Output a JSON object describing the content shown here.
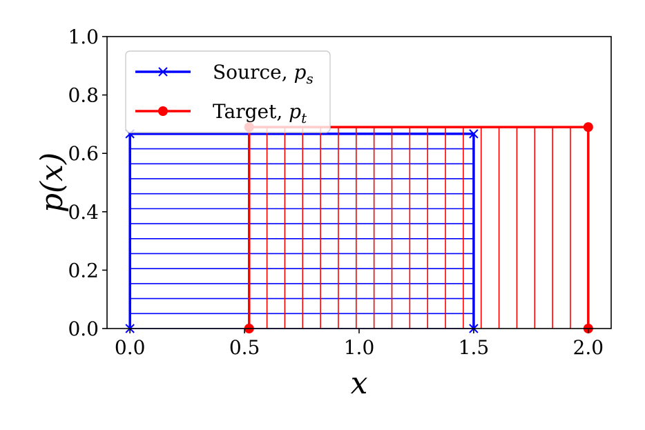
{
  "chart_data": {
    "type": "line",
    "title": "",
    "xlabel": "x",
    "ylabel": "p(x)",
    "xlim": [
      -0.1,
      2.1
    ],
    "ylim": [
      0.0,
      1.0
    ],
    "xticks": [
      "0.0",
      "0.5",
      "1.0",
      "1.5",
      "2.0"
    ],
    "yticks": [
      "0.0",
      "0.2",
      "0.4",
      "0.6",
      "0.8",
      "1.0"
    ],
    "grid": false,
    "legend_position": "upper-left",
    "series": [
      {
        "name": "Source, p_s",
        "legend_main": "Source, ",
        "legend_sym": "p",
        "legend_sub": "s",
        "color": "#0000ff",
        "marker": "x",
        "support": [
          0.0,
          1.5
        ],
        "density": 0.667,
        "x": [
          0.0,
          0.0,
          1.5,
          1.5
        ],
        "y": [
          0.0,
          0.667,
          0.667,
          0.0
        ],
        "hatch": "horizontal"
      },
      {
        "name": "Target, p_t",
        "legend_main": "Target, ",
        "legend_sym": "p",
        "legend_sub": "t",
        "color": "#ff0000",
        "marker": "o",
        "support": [
          0.52,
          2.0
        ],
        "density": 0.69,
        "x": [
          0.52,
          0.52,
          2.0,
          2.0
        ],
        "y": [
          0.0,
          0.69,
          0.69,
          0.0
        ],
        "hatch": "vertical"
      }
    ]
  }
}
